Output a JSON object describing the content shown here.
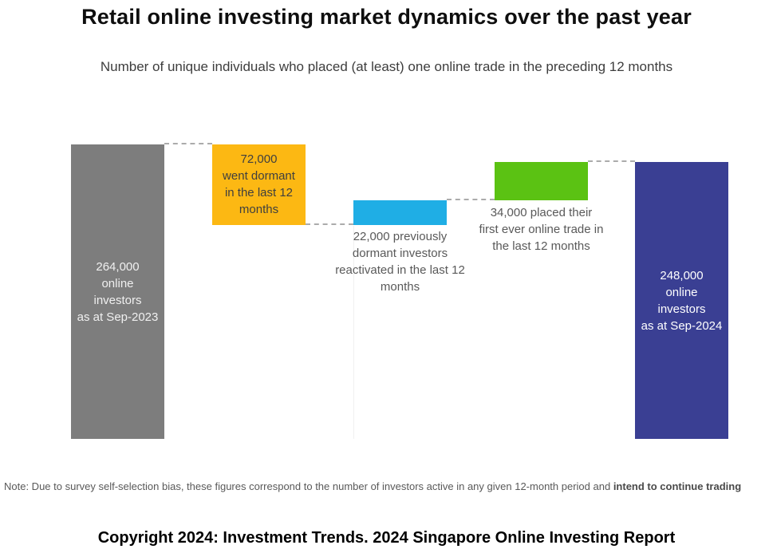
{
  "page": {
    "title": "Retail online investing market dynamics over the past year",
    "subtitle": "Number of unique individuals who placed (at least) one online trade in the preceding 12 months",
    "note_prefix": "Note: Due to survey self-selection bias, these figures correspond to the number of investors active in any given 12-month period and ",
    "note_bold": "intend to continue trading",
    "footer": "Copyright 2024: Investment Trends. 2024 Singapore Online Investing Report"
  },
  "chart_data": {
    "type": "bar",
    "subtype": "waterfall",
    "title": "Retail online investing market dynamics over the past year",
    "subtitle": "Number of unique individuals who placed (at least) one online trade in the preceding 12 months",
    "unit": "unique online investors",
    "axis_visible": false,
    "grid": "off",
    "legend": "none",
    "ylim": [
      0,
      264000
    ],
    "bars": [
      {
        "id": "investors-sep-2023",
        "role": "total",
        "value": 264000,
        "display_value": "264,000",
        "color": "#7D7D7D",
        "label": "264,000\nonline\ninvestors\nas at Sep-2023",
        "label_placement": "inside",
        "label_color": "#F0F0F0"
      },
      {
        "id": "went-dormant",
        "role": "decrease",
        "value": 72000,
        "display_value": "72,000",
        "color": "#FCB813",
        "label": "72,000\nwent dormant\nin the last 12\nmonths",
        "label_placement": "inside",
        "label_color": "#3F3F3F"
      },
      {
        "id": "reactivated",
        "role": "increase",
        "value": 22000,
        "display_value": "22,000",
        "color": "#1FAEE5",
        "label": "22,000 previously\ndormant investors\nreactivated in the last 12\nmonths",
        "label_placement": "below",
        "label_color": "#595959"
      },
      {
        "id": "first-trade",
        "role": "increase",
        "value": 34000,
        "display_value": "34,000",
        "color": "#5BC213",
        "label": "34,000 placed their\nfirst ever online trade in\nthe last 12 months",
        "label_placement": "below",
        "label_color": "#595959"
      },
      {
        "id": "investors-sep-2024",
        "role": "total",
        "value": 248000,
        "display_value": "248,000",
        "color": "#3A3F93",
        "label": "248,000\nonline\ninvestors\nas at Sep-2024",
        "label_placement": "inside",
        "label_color": "#FFFFFF"
      }
    ],
    "connectors": {
      "style": "dashed",
      "color": "#ABABAB"
    }
  }
}
